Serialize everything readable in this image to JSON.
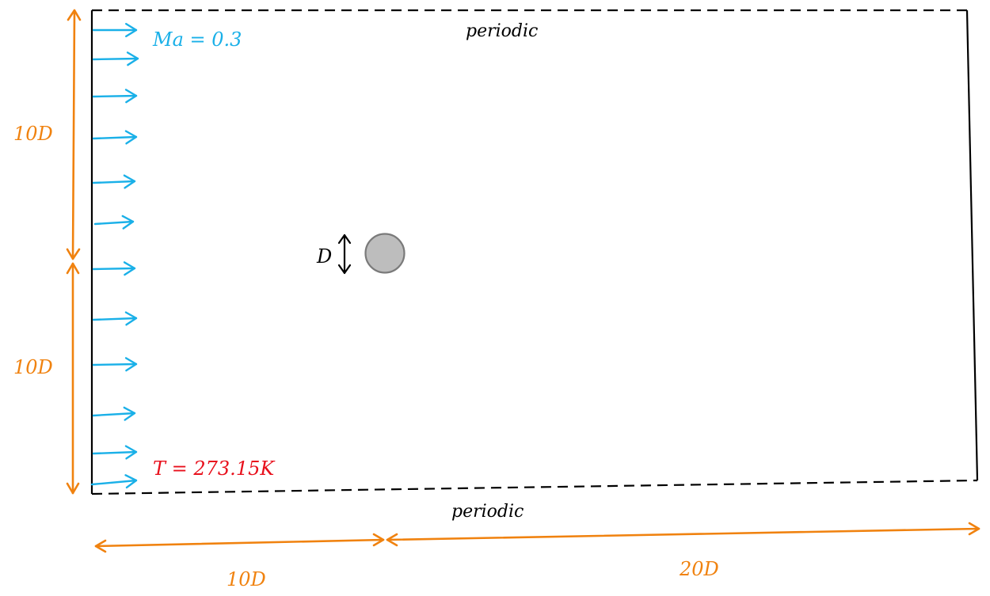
{
  "labels": {
    "mach": "Ma = 0.3",
    "temperature": "T = 273.15K",
    "top_boundary": "periodic",
    "bottom_boundary": "periodic",
    "diameter": "D",
    "upper_height": "10D",
    "lower_height": "10D",
    "upstream_length": "10D",
    "downstream_length": "20D"
  },
  "colors": {
    "inflow": "#1ab0e8",
    "dimension": "#f0820f",
    "temperature": "#e8101c",
    "boundary": "#000000",
    "cylinder_fill": "#bdbdbd",
    "cylinder_stroke": "#7a7a7a"
  }
}
